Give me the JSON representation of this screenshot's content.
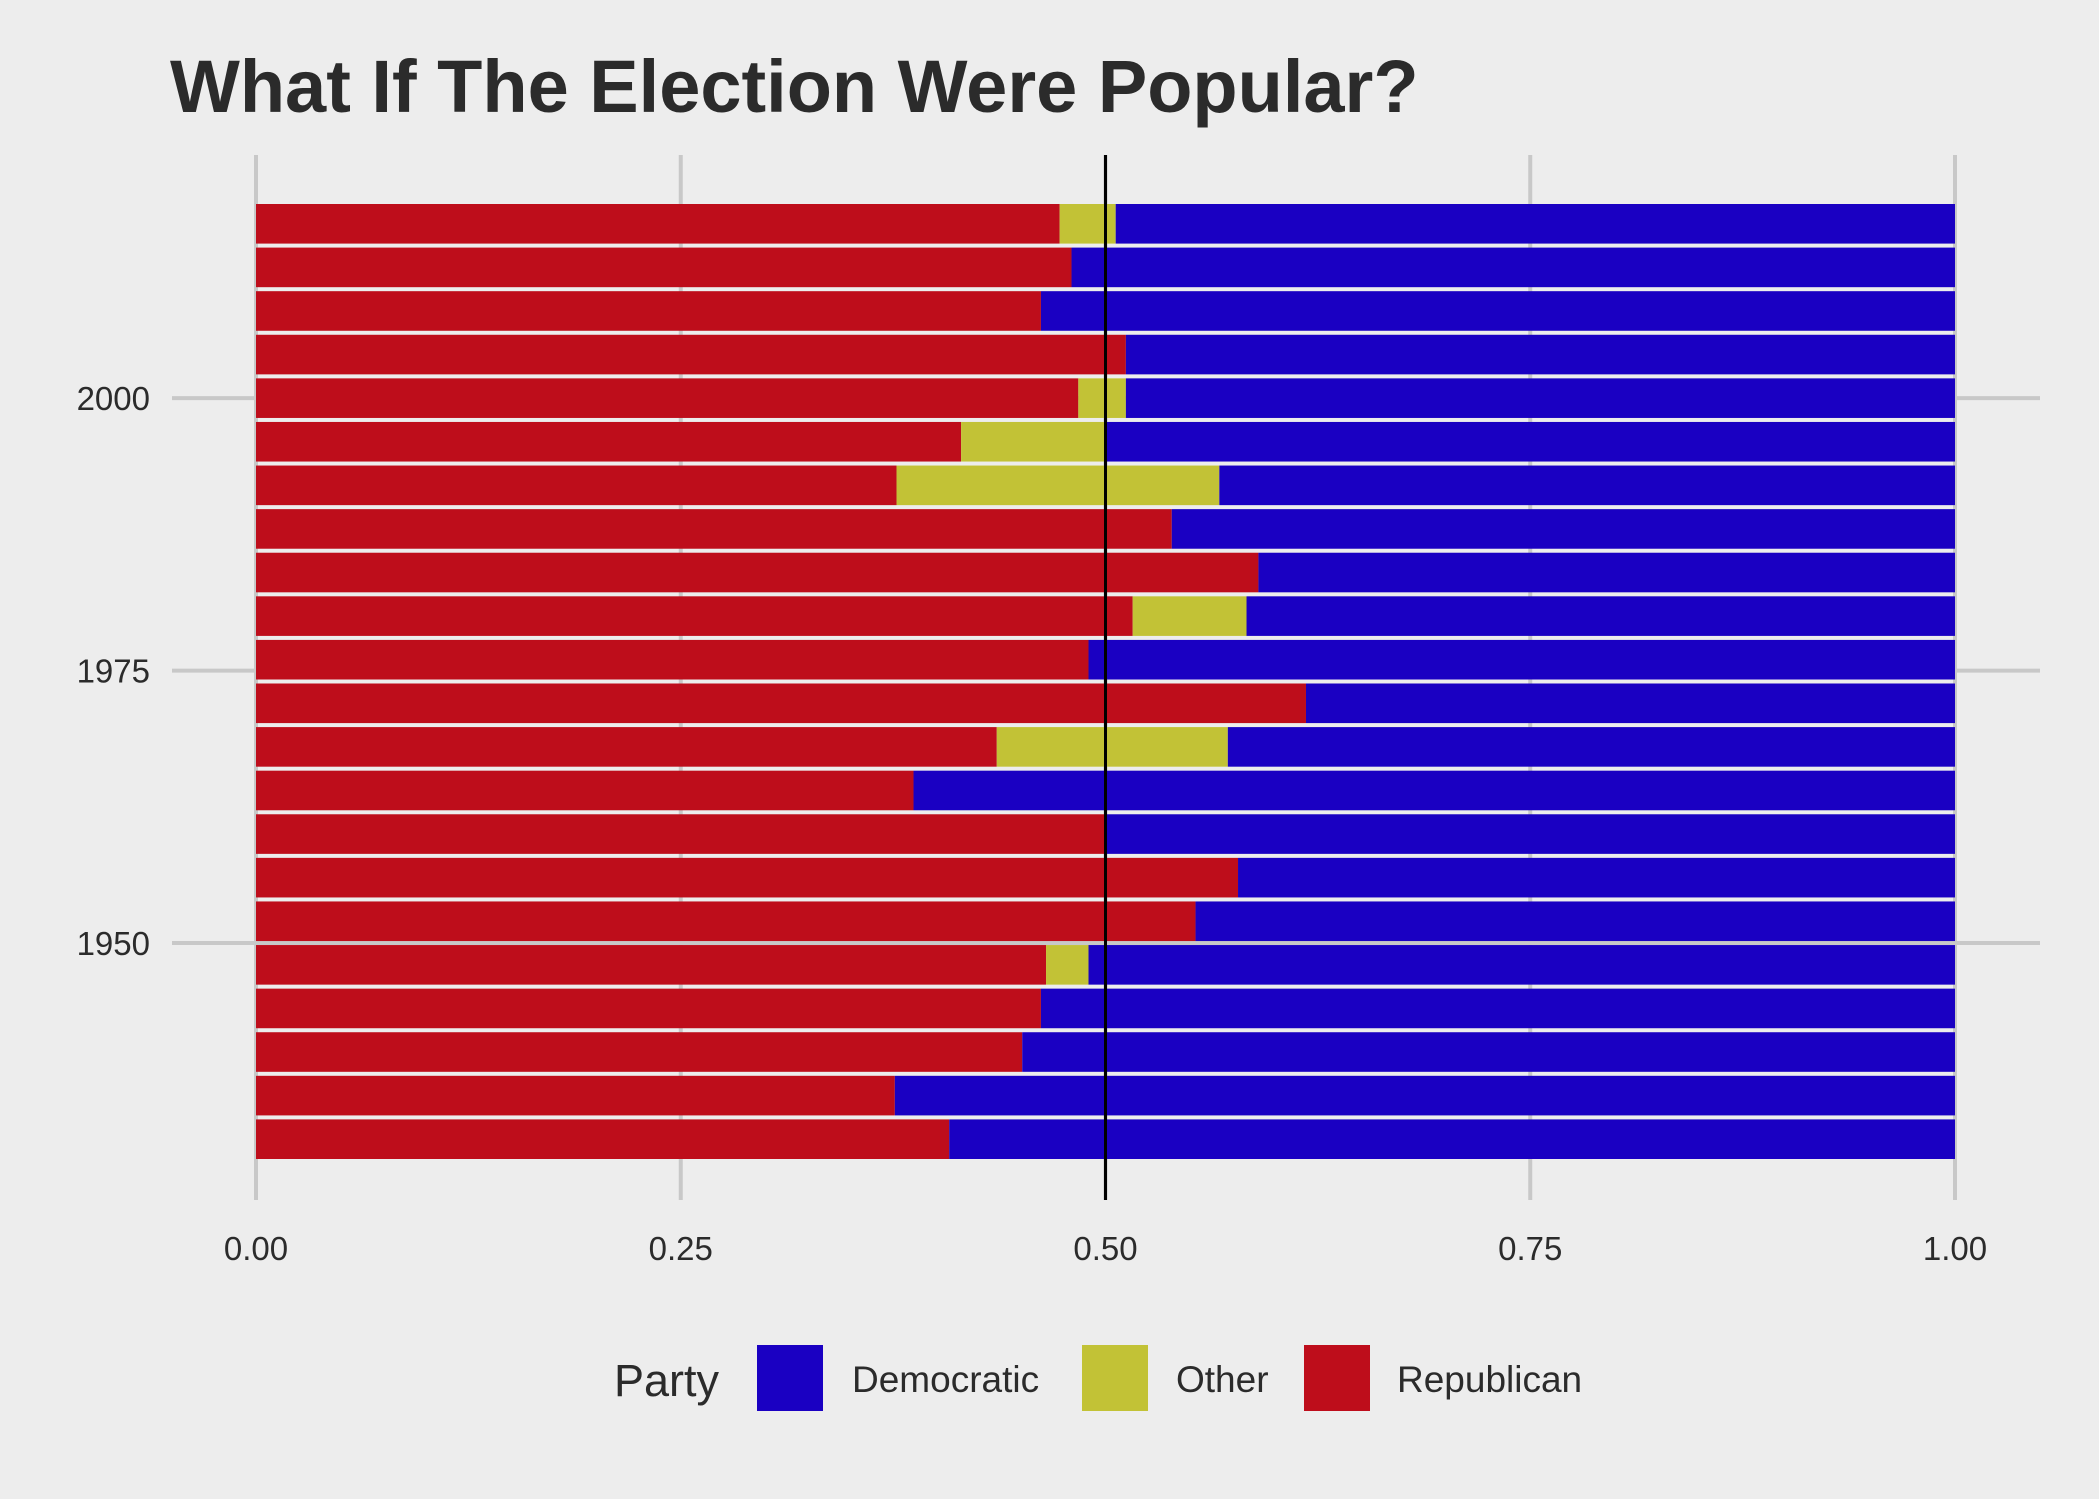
{
  "chart_data": {
    "type": "bar",
    "orientation": "horizontal",
    "stacked": "fill",
    "title": "What If The Election Were Popular?",
    "xlabel": "",
    "ylabel": "",
    "xlim": [
      0,
      1
    ],
    "ylim": [
      1930,
      2018
    ],
    "x_ticks": [
      0,
      0.25,
      0.5,
      0.75,
      1
    ],
    "x_tick_labels": [
      "0.00",
      "0.25",
      "0.50",
      "0.75",
      "1.00"
    ],
    "y_ticks": [
      1950,
      1975,
      2000
    ],
    "y_tick_labels": [
      "1950",
      "1975",
      "2000"
    ],
    "reference_line": {
      "x": 0.5,
      "color": "#000000"
    },
    "legend": {
      "title": "Party",
      "position": "bottom",
      "entries": [
        "Democratic",
        "Other",
        "Republican"
      ]
    },
    "colors": {
      "Democratic": "#1a00c2",
      "Other": "#c2c236",
      "Republican": "#be0d1b",
      "background": "#ededed",
      "grid": "#c8c8c8"
    },
    "categories": [
      1932,
      1936,
      1940,
      1944,
      1948,
      1952,
      1956,
      1960,
      1964,
      1968,
      1972,
      1976,
      1980,
      1984,
      1988,
      1992,
      1996,
      2000,
      2004,
      2008,
      2012,
      2016
    ],
    "series": [
      {
        "name": "Republican",
        "values": [
          0.408,
          0.376,
          0.451,
          0.462,
          0.465,
          0.553,
          0.578,
          0.5,
          0.387,
          0.436,
          0.618,
          0.49,
          0.516,
          0.59,
          0.539,
          0.377,
          0.415,
          0.484,
          0.512,
          0.462,
          0.48,
          0.473
        ]
      },
      {
        "name": "Other",
        "values": [
          0.0,
          0.0,
          0.0,
          0.0,
          0.025,
          0.0,
          0.0,
          0.0,
          0.0,
          0.136,
          0.0,
          0.0,
          0.067,
          0.0,
          0.0,
          0.19,
          0.085,
          0.028,
          0.0,
          0.0,
          0.0,
          0.033
        ]
      },
      {
        "name": "Democratic",
        "values": [
          0.592,
          0.624,
          0.549,
          0.538,
          0.51,
          0.447,
          0.422,
          0.5,
          0.613,
          0.428,
          0.382,
          0.51,
          0.417,
          0.41,
          0.461,
          0.433,
          0.5,
          0.488,
          0.488,
          0.538,
          0.52,
          0.494
        ]
      }
    ]
  }
}
